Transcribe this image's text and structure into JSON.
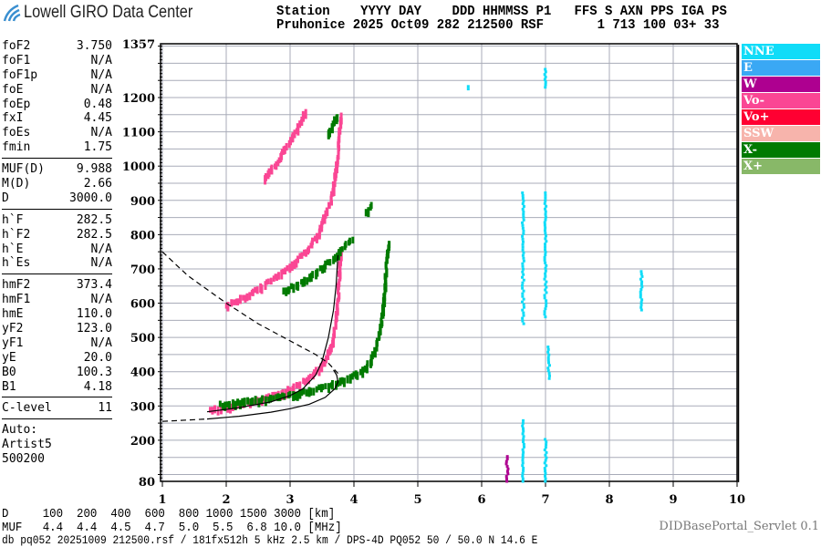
{
  "header": {
    "logo_text": "Lowell GIRO Data Center",
    "columns_line": "Station    YYYY DAY    DDD HHMMSS P1   FFS S AXN PPS IGA PS",
    "values_line": "Pruhonice 2025 Oct09 282 212500 RSF       1 713 100 03+ 33"
  },
  "params": {
    "group1": [
      [
        "foF2",
        "3.750"
      ],
      [
        "foF1",
        "N/A"
      ],
      [
        "foF1p",
        "N/A"
      ],
      [
        "foE",
        "N/A"
      ],
      [
        "foEp",
        "0.48"
      ],
      [
        "fxI",
        "4.45"
      ],
      [
        "foEs",
        "N/A"
      ],
      [
        "fmin",
        "1.75"
      ]
    ],
    "group2": [
      [
        "MUF(D)",
        "9.988"
      ],
      [
        "M(D)",
        "2.66"
      ],
      [
        "D",
        "3000.0"
      ]
    ],
    "group3": [
      [
        "h`F",
        "282.5"
      ],
      [
        "h`F2",
        "282.5"
      ],
      [
        "h`E",
        "N/A"
      ],
      [
        "h`Es",
        "N/A"
      ]
    ],
    "group4": [
      [
        "hmF2",
        "373.4"
      ],
      [
        "hmF1",
        "N/A"
      ],
      [
        "hmE",
        "110.0"
      ],
      [
        "yF2",
        "123.0"
      ],
      [
        "yF1",
        "N/A"
      ],
      [
        "yE",
        "20.0"
      ],
      [
        "B0",
        "100.3"
      ],
      [
        "B1",
        "4.18"
      ]
    ],
    "group5": [
      [
        "C-level",
        "11"
      ]
    ],
    "auto": [
      "Auto:",
      "Artist5",
      "500200"
    ]
  },
  "legend": [
    {
      "label": "NNE",
      "color": "#10dcf8"
    },
    {
      "label": "E",
      "color": "#3aa8f4"
    },
    {
      "label": "W",
      "color": "#ae0090"
    },
    {
      "label": "Vo-",
      "color": "#fa4694"
    },
    {
      "label": "Vo+",
      "color": "#ff0032"
    },
    {
      "label": "SSW",
      "color": "#f7b4ac"
    },
    {
      "label": "X-",
      "color": "#007a00"
    },
    {
      "label": "X+",
      "color": "#88b868"
    }
  ],
  "bottom": {
    "d_line": "D     100  200  400  600  800 1000 1500 3000 [km]",
    "muf_line": "MUF   4.4  4.4  4.5  4.7  5.0  5.5  6.8 10.0 [MHz]",
    "footer": "db pq052 20251009 212500.rsf / 181fx512h 5 kHz 2.5 km / DPS-4D PQ052 50 / 50.0 N 14.6 E",
    "servlet": "DIDBasePortal_Servlet 0.1"
  },
  "chart_data": {
    "type": "scatter",
    "xlim": [
      1,
      10
    ],
    "ylim": [
      80,
      1357
    ],
    "x_ticks": [
      1,
      2,
      3,
      4,
      5,
      6,
      7,
      8,
      9,
      10
    ],
    "y_tick_labels": [
      1357,
      1200,
      1100,
      1000,
      900,
      800,
      700,
      600,
      500,
      400,
      300,
      200,
      80
    ],
    "grid": true,
    "grid_y_step": 50,
    "legend_placement": "right",
    "series": [
      {
        "name": "Vo-",
        "traces": [
          [
            [
              1.75,
              285
            ],
            [
              2.0,
              292
            ],
            [
              2.3,
              305
            ],
            [
              2.6,
              318
            ],
            [
              2.9,
              338
            ],
            [
              3.1,
              355
            ],
            [
              3.3,
              380
            ],
            [
              3.45,
              405
            ],
            [
              3.55,
              430
            ],
            [
              3.65,
              470
            ],
            [
              3.7,
              520
            ],
            [
              3.75,
              600
            ],
            [
              3.78,
              700
            ],
            [
              3.8,
              760
            ]
          ],
          [
            [
              2.0,
              590
            ],
            [
              2.3,
              615
            ],
            [
              2.6,
              650
            ],
            [
              2.9,
              690
            ],
            [
              3.1,
              720
            ],
            [
              3.3,
              760
            ],
            [
              3.45,
              800
            ],
            [
              3.55,
              850
            ],
            [
              3.65,
              900
            ],
            [
              3.7,
              960
            ],
            [
              3.75,
              1030
            ],
            [
              3.78,
              1100
            ],
            [
              3.8,
              1150
            ]
          ],
          [
            [
              2.6,
              960
            ],
            [
              2.8,
              1010
            ],
            [
              3.0,
              1070
            ],
            [
              3.15,
              1120
            ],
            [
              3.25,
              1160
            ]
          ]
        ]
      },
      {
        "name": "X-",
        "traces": [
          [
            [
              1.9,
              300
            ],
            [
              2.3,
              310
            ],
            [
              2.7,
              320
            ],
            [
              3.0,
              330
            ],
            [
              3.3,
              340
            ],
            [
              3.6,
              355
            ],
            [
              3.9,
              375
            ],
            [
              4.1,
              395
            ],
            [
              4.25,
              425
            ],
            [
              4.35,
              470
            ],
            [
              4.42,
              520
            ],
            [
              4.47,
              600
            ],
            [
              4.5,
              680
            ],
            [
              4.55,
              780
            ]
          ],
          [
            [
              2.9,
              630
            ],
            [
              3.1,
              650
            ],
            [
              3.3,
              670
            ],
            [
              3.5,
              700
            ],
            [
              3.7,
              730
            ],
            [
              3.8,
              750
            ],
            [
              4.0,
              790
            ]
          ],
          [
            [
              4.2,
              860
            ],
            [
              4.3,
              890
            ]
          ],
          [
            [
              3.6,
              1090
            ],
            [
              3.75,
              1150
            ]
          ]
        ]
      },
      {
        "name": "NNE",
        "traces": [
          [
            [
              6.65,
              540
            ],
            [
              6.65,
              930
            ]
          ],
          [
            [
              7.0,
              560
            ],
            [
              7.0,
              930
            ]
          ],
          [
            [
              7.05,
              380
            ],
            [
              7.05,
              480
            ]
          ],
          [
            [
              8.5,
              580
            ],
            [
              8.5,
              700
            ]
          ],
          [
            [
              6.65,
              80
            ],
            [
              6.65,
              265
            ]
          ],
          [
            [
              7.0,
              80
            ],
            [
              7.0,
              210
            ]
          ],
          [
            [
              7.0,
              1230
            ],
            [
              7.0,
              1290
            ]
          ],
          [
            [
              5.8,
              1225
            ],
            [
              5.8,
              1240
            ]
          ]
        ]
      },
      {
        "name": "W",
        "traces": [
          [
            [
              6.4,
              80
            ],
            [
              6.4,
              160
            ]
          ]
        ]
      }
    ],
    "curves": [
      {
        "style": "solid",
        "points": [
          [
            1.7,
            283
          ],
          [
            2.2,
            295
          ],
          [
            2.7,
            312
          ],
          [
            3.0,
            330
          ],
          [
            3.2,
            350
          ],
          [
            3.4,
            390
          ],
          [
            3.5,
            430
          ],
          [
            3.6,
            500
          ],
          [
            3.68,
            580
          ],
          [
            3.72,
            650
          ],
          [
            3.75,
            740
          ]
        ]
      },
      {
        "style": "solid",
        "points": [
          [
            1.7,
            262
          ],
          [
            2.2,
            270
          ],
          [
            2.7,
            282
          ],
          [
            3.0,
            292
          ],
          [
            3.3,
            305
          ],
          [
            3.55,
            325
          ],
          [
            3.7,
            350
          ],
          [
            3.75,
            370
          ],
          [
            3.73,
            390
          ],
          [
            3.68,
            405
          ]
        ]
      },
      {
        "style": "dashed",
        "points": [
          [
            1.0,
            255
          ],
          [
            1.7,
            262
          ]
        ]
      },
      {
        "style": "dashed",
        "points": [
          [
            1.0,
            750
          ],
          [
            1.4,
            680
          ],
          [
            2.0,
            600
          ],
          [
            2.5,
            540
          ],
          [
            3.0,
            490
          ],
          [
            3.4,
            450
          ],
          [
            3.6,
            425
          ],
          [
            3.75,
            395
          ]
        ]
      }
    ]
  }
}
